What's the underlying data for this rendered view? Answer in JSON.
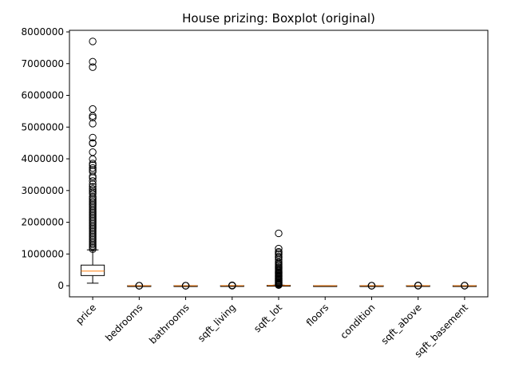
{
  "chart_data": {
    "type": "boxplot",
    "title": "House prizing: Boxplot (original)",
    "xlabel": "",
    "ylabel": "",
    "ylim": [
      -350000,
      8050000
    ],
    "yticks": [
      0,
      1000000,
      2000000,
      3000000,
      4000000,
      5000000,
      6000000,
      7000000,
      8000000
    ],
    "ytick_labels": [
      "0",
      "1000000",
      "2000000",
      "3000000",
      "4000000",
      "5000000",
      "6000000",
      "7000000",
      "8000000"
    ],
    "grid": false,
    "categories": [
      "price",
      "bedrooms",
      "bathrooms",
      "sqft_living",
      "sqft_lot",
      "floors",
      "condition",
      "sqft_above",
      "sqft_basement"
    ],
    "colors": {
      "box": "#000000",
      "median": "#ff7f0e",
      "flier": "#000000"
    },
    "boxes": [
      {
        "name": "price",
        "whisker_low": 80000,
        "q1": 320000,
        "median": 460000,
        "q3": 650000,
        "whisker_high": 1130000,
        "fliers": [
          7700000,
          7060000,
          6890000,
          5570000,
          5350000,
          5300000,
          5110000,
          4670000,
          4500000,
          4490000,
          4210000,
          3990000,
          3850000,
          3800000,
          3710000,
          3650000,
          3600000,
          3450000,
          3400000,
          3300000,
          3200000,
          3120000,
          3050000,
          3000000,
          2950000,
          2900000,
          2800000,
          2750000,
          2700000,
          2650000,
          2600000,
          2550000,
          2500000,
          2450000,
          2400000,
          2350000,
          2300000,
          2250000,
          2200000,
          2150000,
          2100000,
          2050000,
          2000000,
          1950000,
          1900000,
          1850000,
          1800000,
          1750000,
          1700000,
          1650000,
          1600000,
          1550000,
          1500000,
          1450000,
          1400000,
          1350000,
          1300000,
          1250000,
          1200000,
          1150000
        ]
      },
      {
        "name": "bedrooms",
        "whisker_low": 1,
        "q1": 3,
        "median": 3,
        "q3": 4,
        "whisker_high": 5,
        "fliers": [
          0,
          10,
          33
        ]
      },
      {
        "name": "bathrooms",
        "whisker_low": 0,
        "q1": 1.75,
        "median": 2.25,
        "q3": 2.5,
        "whisker_high": 3.5,
        "fliers": [
          0,
          5,
          8
        ]
      },
      {
        "name": "sqft_living",
        "whisker_low": 290,
        "q1": 1430,
        "median": 1910,
        "q3": 2550,
        "whisker_high": 4220,
        "fliers": [
          0,
          6000,
          13540
        ]
      },
      {
        "name": "sqft_lot",
        "whisker_low": 520,
        "q1": 5000,
        "median": 7600,
        "q3": 10700,
        "whisker_high": 19200,
        "fliers": [
          1650000,
          1170000,
          1070000,
          1030000,
          980000,
          920000,
          880000,
          820000,
          750000,
          700000,
          660000,
          620000,
          580000,
          550000,
          520000,
          480000,
          450000,
          420000,
          400000,
          380000,
          350000,
          320000,
          300000,
          280000,
          250000,
          220000,
          200000,
          170000,
          150000,
          120000,
          100000,
          80000,
          60000,
          40000,
          30000,
          20000
        ]
      },
      {
        "name": "floors",
        "whisker_low": 1,
        "q1": 1,
        "median": 1.5,
        "q3": 2,
        "whisker_high": 3.5,
        "fliers": []
      },
      {
        "name": "condition",
        "whisker_low": 2,
        "q1": 3,
        "median": 3,
        "q3": 4,
        "whisker_high": 5,
        "fliers": [
          0,
          5,
          10
        ]
      },
      {
        "name": "sqft_above",
        "whisker_low": 370,
        "q1": 1190,
        "median": 1590,
        "q3": 2300,
        "whisker_high": 3900,
        "fliers": [
          0,
          5000,
          9410
        ]
      },
      {
        "name": "sqft_basement",
        "whisker_low": 0,
        "q1": 0,
        "median": 0,
        "q3": 610,
        "whisker_high": 1500,
        "fliers": [
          0,
          2500,
          4820
        ]
      }
    ]
  }
}
